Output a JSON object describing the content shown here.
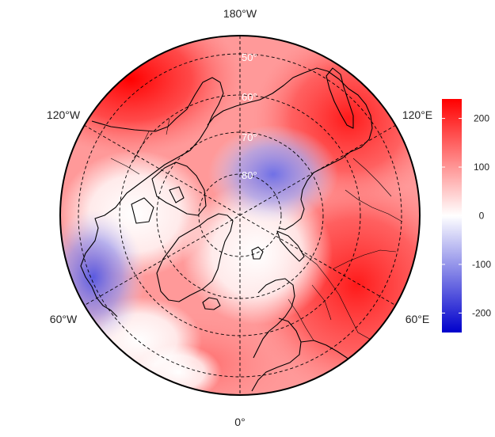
{
  "map": {
    "projection": "north polar stereographic",
    "longitude_labels": {
      "top": "180°W",
      "bottom": "0°",
      "upper_left": "120°W",
      "upper_right": "120°E",
      "lower_left": "60°W",
      "lower_right": "60°E"
    },
    "latitude_labels": [
      "50°",
      "60°",
      "70°",
      "80°"
    ],
    "field_colors": {
      "max": "#e60000",
      "zero": "#ffffff",
      "min": "#0000cc"
    },
    "field_anomalies": [
      {
        "region": "North Pacific / Alaska",
        "sign": "positive",
        "strength": "strong"
      },
      {
        "region": "Eurasia / Siberia",
        "sign": "positive",
        "strength": "strong"
      },
      {
        "region": "Polar cap near East Siberian Sea",
        "sign": "negative",
        "strength": "moderate"
      },
      {
        "region": "Northwest Atlantic / Labrador",
        "sign": "negative",
        "strength": "moderate"
      },
      {
        "region": "Greenland / Arctic Ocean",
        "sign": "neutral",
        "strength": "weak"
      }
    ]
  },
  "colorbar": {
    "ticks": [
      "200",
      "100",
      "0",
      "-100",
      "-200"
    ],
    "range": [
      -240,
      240
    ],
    "colors": {
      "top": "#ff0000",
      "mid": "#ffffff",
      "bottom": "#0000cc"
    }
  }
}
